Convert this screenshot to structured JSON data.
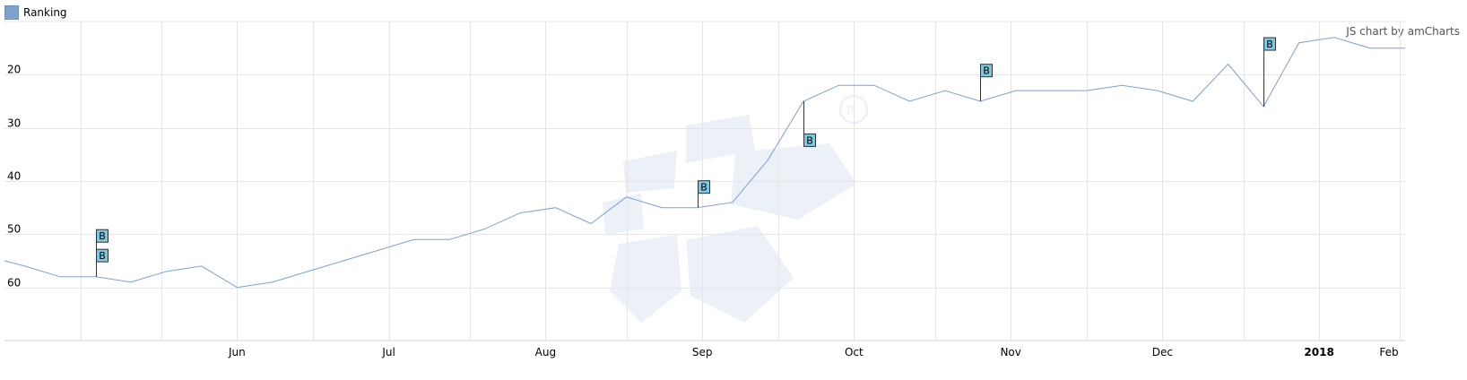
{
  "legend": {
    "label": "Ranking",
    "color": "#7ea1cf"
  },
  "credit": "JS chart by amCharts",
  "chart_data": {
    "type": "line",
    "series": [
      {
        "name": "Ranking",
        "color": "#7ea1cf",
        "x": [
          "2017-05-01",
          "2017-05-05",
          "2017-05-12",
          "2017-05-19",
          "2017-05-26",
          "2017-06-02",
          "2017-06-09",
          "2017-06-16",
          "2017-06-23",
          "2017-06-30",
          "2017-07-07",
          "2017-07-14",
          "2017-07-21",
          "2017-07-28",
          "2017-08-04",
          "2017-08-11",
          "2017-08-18",
          "2017-08-25",
          "2017-09-01",
          "2017-09-08",
          "2017-09-15",
          "2017-09-22",
          "2017-09-29",
          "2017-10-06",
          "2017-10-13",
          "2017-10-20",
          "2017-10-27",
          "2017-11-03",
          "2017-11-10",
          "2017-11-17",
          "2017-11-24",
          "2017-12-01",
          "2017-12-08",
          "2017-12-15",
          "2017-12-22",
          "2017-12-29",
          "2018-01-05",
          "2018-01-12",
          "2018-01-19",
          "2018-01-26",
          "2018-02-02"
        ],
        "y": [
          55,
          56,
          58,
          58,
          59,
          57,
          56,
          60,
          59,
          57,
          55,
          53,
          51,
          51,
          49,
          46,
          45,
          48,
          43,
          45,
          45,
          44,
          36,
          25,
          22,
          22,
          25,
          23,
          25,
          23,
          23,
          23,
          22,
          23,
          25,
          18,
          26,
          14,
          13,
          15,
          15
        ]
      }
    ],
    "x_ticks": [
      {
        "date": "2017-06-01",
        "label": "Jun",
        "bold": false
      },
      {
        "date": "2017-07-01",
        "label": "Jul",
        "bold": false
      },
      {
        "date": "2017-08-01",
        "label": "Aug",
        "bold": false
      },
      {
        "date": "2017-09-01",
        "label": "Sep",
        "bold": false
      },
      {
        "date": "2017-10-01",
        "label": "Oct",
        "bold": false
      },
      {
        "date": "2017-11-01",
        "label": "Nov",
        "bold": false
      },
      {
        "date": "2017-12-01",
        "label": "Dec",
        "bold": false
      },
      {
        "date": "2018-01-01",
        "label": "2018",
        "bold": true
      },
      {
        "date": "2018-02-01",
        "label": "Feb",
        "bold": false
      }
    ],
    "y_ticks": [
      20,
      30,
      40,
      50,
      60
    ],
    "y_reversed": true,
    "ylim": [
      10,
      70
    ],
    "xlim": [
      "2017-05-01",
      "2018-02-02"
    ],
    "grid": true,
    "legend_position": "top-left",
    "events": [
      {
        "date": "2017-05-19",
        "label": "B",
        "y": 51.5
      },
      {
        "date": "2017-05-19",
        "label": "B",
        "y": 55.2
      },
      {
        "date": "2017-09-15",
        "label": "B",
        "y": 42.3
      },
      {
        "date": "2017-10-06",
        "label": "B",
        "y": 33.5
      },
      {
        "date": "2017-11-10",
        "label": "B",
        "y": 20.4
      },
      {
        "date": "2018-01-05",
        "label": "B",
        "y": 15.4
      }
    ]
  }
}
